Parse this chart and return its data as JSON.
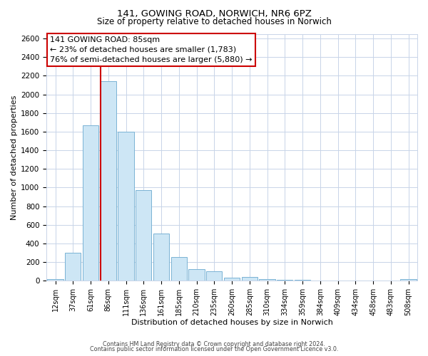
{
  "title1": "141, GOWING ROAD, NORWICH, NR6 6PZ",
  "title2": "Size of property relative to detached houses in Norwich",
  "xlabel": "Distribution of detached houses by size in Norwich",
  "ylabel": "Number of detached properties",
  "bar_labels": [
    "12sqm",
    "37sqm",
    "61sqm",
    "86sqm",
    "111sqm",
    "136sqm",
    "161sqm",
    "185sqm",
    "210sqm",
    "235sqm",
    "260sqm",
    "285sqm",
    "310sqm",
    "334sqm",
    "359sqm",
    "384sqm",
    "409sqm",
    "434sqm",
    "458sqm",
    "483sqm",
    "508sqm"
  ],
  "bar_values": [
    20,
    300,
    1670,
    2140,
    1600,
    970,
    510,
    255,
    125,
    100,
    30,
    40,
    15,
    10,
    10,
    5,
    5,
    5,
    5,
    5,
    20
  ],
  "bar_color": "#cde6f5",
  "bar_edge_color": "#7ab3d4",
  "vline_color": "#cc0000",
  "annotation_text": "141 GOWING ROAD: 85sqm\n← 23% of detached houses are smaller (1,783)\n76% of semi-detached houses are larger (5,880) →",
  "annotation_box_color": "#ffffff",
  "annotation_box_edge": "#cc0000",
  "ylim": [
    0,
    2650
  ],
  "yticks": [
    0,
    200,
    400,
    600,
    800,
    1000,
    1200,
    1400,
    1600,
    1800,
    2000,
    2200,
    2400,
    2600
  ],
  "footer1": "Contains HM Land Registry data © Crown copyright and database right 2024.",
  "footer2": "Contains public sector information licensed under the Open Government Licence v3.0.",
  "bg_color": "#ffffff",
  "grid_color": "#c8d4e8",
  "title1_fontsize": 9.5,
  "title2_fontsize": 8.5
}
